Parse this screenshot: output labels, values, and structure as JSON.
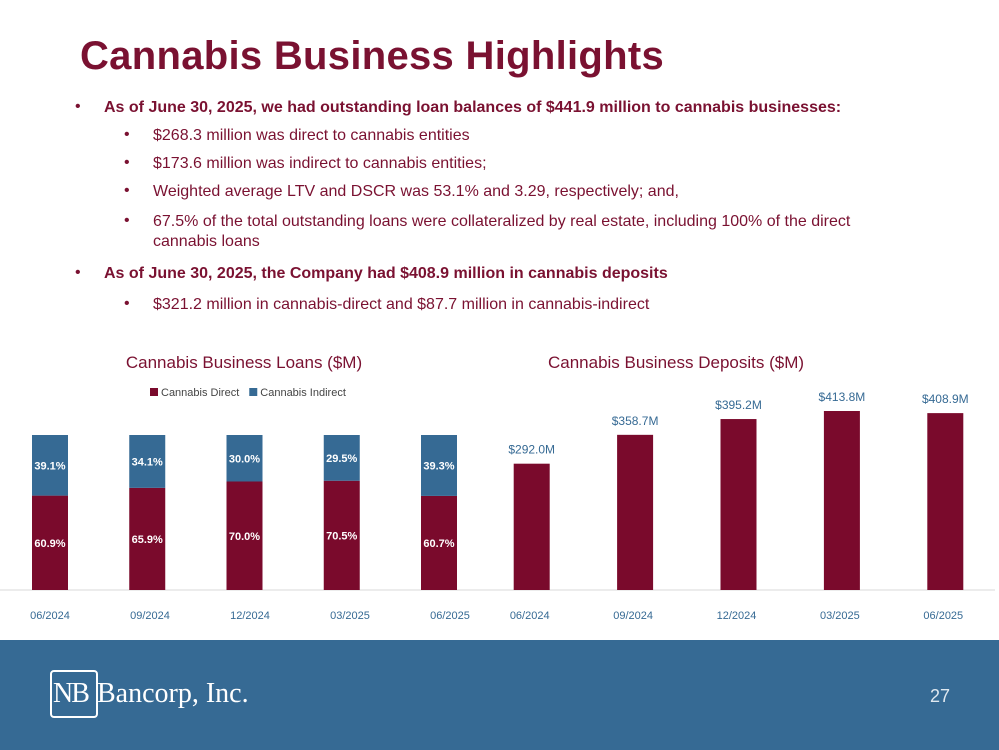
{
  "title": "Cannabis Business Highlights",
  "bullets": [
    {
      "text": "As of June 30, 2025, we had outstanding loan balances of $441.9 million to cannabis businesses:",
      "items": [
        "$268.3 million was direct to cannabis entities",
        "$173.6 million was indirect to cannabis entities;",
        "Weighted average LTV and DSCR was 53.1% and 3.29, respectively; and,",
        "67.5% of the total outstanding loans were collateralized by real estate, including 100% of the direct cannabis loans"
      ]
    },
    {
      "text": "As of June 30, 2025, the Company had $408.9 million in cannabis deposits",
      "items": [
        "$321.2 million in cannabis-direct and $87.7 million in cannabis-indirect"
      ]
    }
  ],
  "footer": {
    "logo_mark": "NB",
    "logo_text": "Bancorp, Inc.",
    "page": "27"
  },
  "chart_data": [
    {
      "type": "stacked_bar",
      "title": "Cannabis Business Loans ($M)",
      "categories": [
        "06/2024",
        "09/2024",
        "12/2024",
        "03/2025",
        "06/2025"
      ],
      "series": [
        {
          "name": "Cannabis Direct",
          "color": "#7a0a2c",
          "values": [
            60.9,
            65.9,
            70.0,
            70.5,
            60.7
          ],
          "value_labels": [
            "60.9%",
            "65.9%",
            "70.0%",
            "70.5%",
            "60.7%"
          ]
        },
        {
          "name": "Cannabis Indirect",
          "color": "#366a94",
          "values": [
            39.1,
            34.1,
            30.0,
            29.5,
            39.3
          ],
          "value_labels": [
            "39.1%",
            "34.1%",
            "30.0%",
            "29.5%",
            "39.3%"
          ]
        }
      ]
    },
    {
      "type": "bar",
      "title": "Cannabis Business Deposits ($M)",
      "categories": [
        "06/2024",
        "09/2024",
        "12/2024",
        "03/2025",
        "06/2025"
      ],
      "values": [
        292.0,
        358.7,
        395.2,
        413.8,
        408.9
      ],
      "value_labels": [
        "$292.0M",
        "$358.7M",
        "$395.2M",
        "$413.8M",
        "$408.9M"
      ],
      "color": "#7a0a2c"
    }
  ]
}
